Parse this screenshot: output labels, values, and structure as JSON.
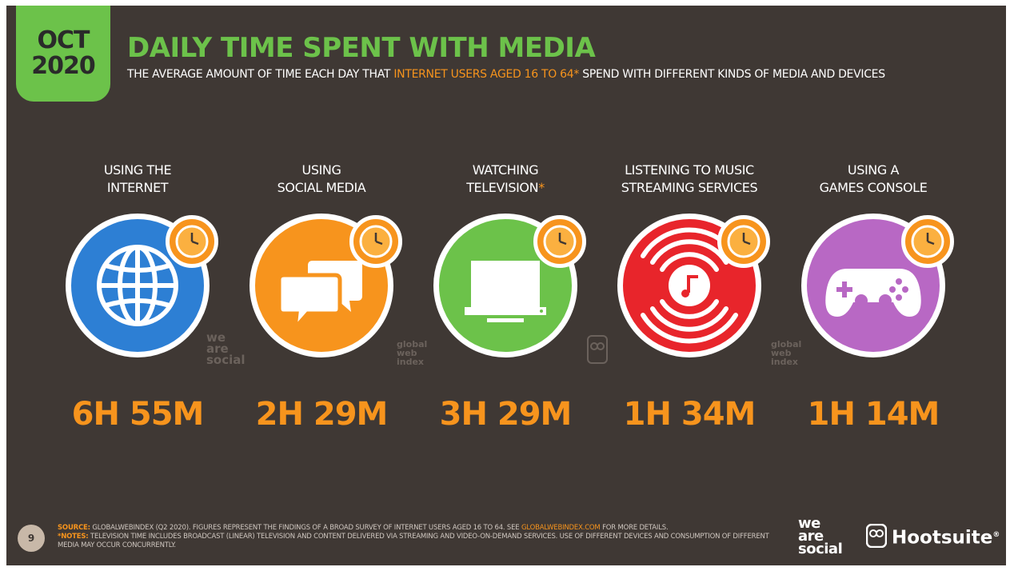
{
  "header": {
    "month": "OCT",
    "year": "2020",
    "title": "DAILY TIME SPENT WITH MEDIA",
    "subtitle_pre": "THE AVERAGE AMOUNT OF TIME EACH DAY THAT ",
    "subtitle_highlight": "INTERNET USERS AGED 16 TO 64*",
    "subtitle_post": " SPEND WITH DIFFERENT KINDS OF MEDIA AND DEVICES"
  },
  "items": [
    {
      "line1": "USING THE",
      "line2": "INTERNET",
      "asterisk": "",
      "value": "6H 55M",
      "color": "#2d7fd4",
      "icon": "globe-icon"
    },
    {
      "line1": "USING",
      "line2": "SOCIAL MEDIA",
      "asterisk": "",
      "value": "2H 29M",
      "color": "#f7941d",
      "icon": "chat-bubbles-icon"
    },
    {
      "line1": "WATCHING",
      "line2": "TELEVISION",
      "asterisk": "*",
      "value": "3H 29M",
      "color": "#6cc24a",
      "icon": "television-icon"
    },
    {
      "line1": "LISTENING TO MUSIC",
      "line2": "STREAMING SERVICES",
      "asterisk": "",
      "value": "1H 34M",
      "color": "#e8252b",
      "icon": "music-streaming-icon"
    },
    {
      "line1": "USING A",
      "line2": "GAMES CONSOLE",
      "asterisk": "",
      "value": "1H 14M",
      "color": "#b868c4",
      "icon": "gamepad-icon"
    }
  ],
  "watermarks": {
    "was": [
      "we",
      "are",
      "social"
    ],
    "gwi": [
      "global",
      "web",
      "index"
    ]
  },
  "footer": {
    "page_number": "9",
    "source_label": "SOURCE:",
    "source_text": " GLOBALWEBINDEX (Q2 2020). FIGURES REPRESENT THE FINDINGS OF A BROAD SURVEY OF INTERNET USERS AGED 16 TO 64. SEE ",
    "source_link": "GLOBALWEBINDEX.COM",
    "source_end": " FOR MORE DETAILS.",
    "notes_label": "*NOTES:",
    "notes_text": " TELEVISION TIME INCLUDES BROADCAST (LINEAR) TELEVISION AND CONTENT DELIVERED VIA STREAMING AND VIDEO-ON-DEMAND SERVICES. USE OF DIFFERENT DEVICES AND CONSUMPTION OF DIFFERENT MEDIA MAY OCCUR CONCURRENTLY."
  },
  "brands": {
    "was": [
      "we",
      "are",
      "social"
    ],
    "hootsuite": "Hootsuite",
    "registered": "®"
  },
  "colors": {
    "background": "#3f3834",
    "accent_green": "#6cc24a",
    "accent_orange": "#f7941d"
  }
}
